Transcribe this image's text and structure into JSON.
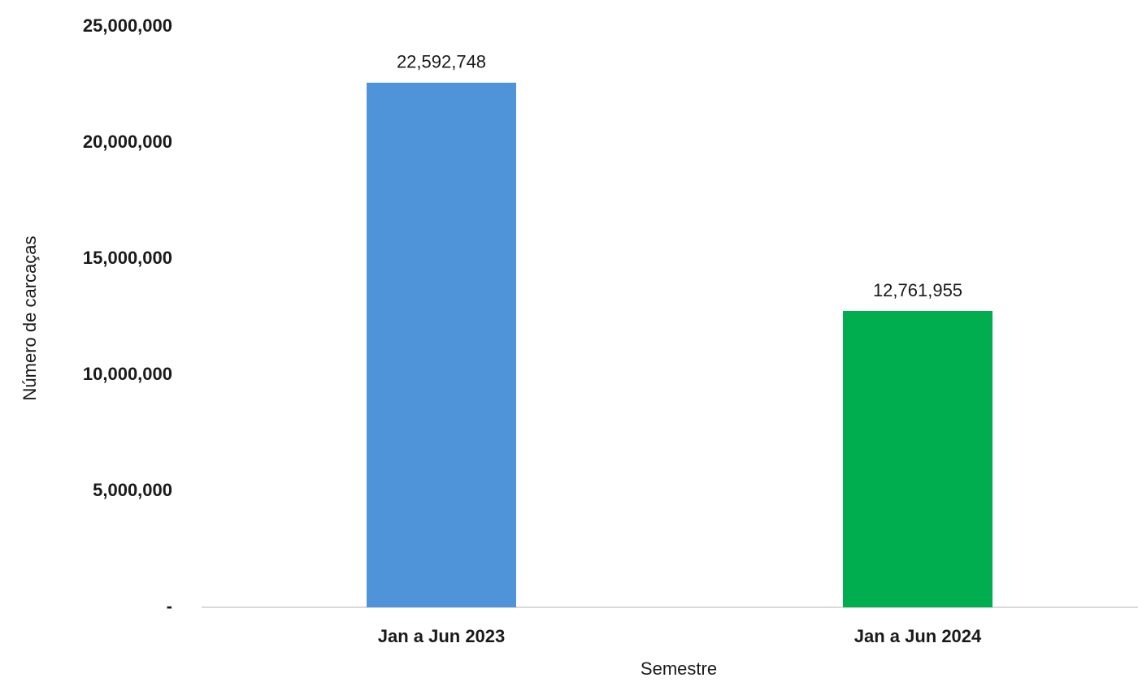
{
  "chart_data": {
    "type": "bar",
    "categories": [
      "Jan a Jun 2023",
      "Jan a Jun 2024"
    ],
    "values": [
      22592748,
      12761955
    ],
    "value_labels": [
      "22,592,748",
      "12,761,955"
    ],
    "colors": [
      "#4f94d9",
      "#00ad4f"
    ],
    "xlabel": "Semestre",
    "ylabel": "Número de carcaças",
    "ylim": [
      0,
      25000000
    ],
    "yticks": [
      {
        "value": 0,
        "label": "-"
      },
      {
        "value": 5000000,
        "label": "5,000,000"
      },
      {
        "value": 10000000,
        "label": "10,000,000"
      },
      {
        "value": 15000000,
        "label": "15,000,000"
      },
      {
        "value": 20000000,
        "label": "20,000,000"
      },
      {
        "value": 25000000,
        "label": "25,000,000"
      }
    ],
    "grid": false
  }
}
